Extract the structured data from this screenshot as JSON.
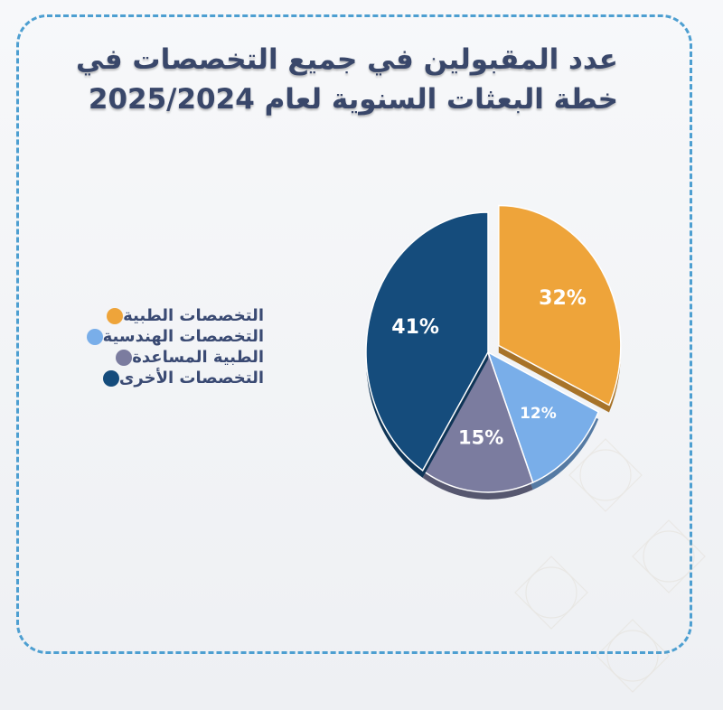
{
  "title": "عدد المقبولين في جميع التخصصات في خطة البعثات السنوية لعام 2025/2024",
  "chart_data": {
    "type": "pie",
    "title": "عدد المقبولين في جميع التخصصات في خطة البعثات السنوية لعام 2025/2024",
    "legend_position": "left",
    "slices": [
      {
        "name": "التخصصات الطبية",
        "value": 32,
        "label": "32%",
        "color": "#eea43a",
        "exploded": true
      },
      {
        "name": "التخصصات الهندسية",
        "value": 12,
        "label": "12%",
        "color": "#79aee9",
        "exploded": false
      },
      {
        "name": "الطبية المساعدة",
        "value": 15,
        "label": "15%",
        "color": "#7b7c9f",
        "exploded": false
      },
      {
        "name": "التخصصات الأخرى",
        "value": 41,
        "label": "41%",
        "color": "#154c7c",
        "exploded": false
      }
    ]
  }
}
